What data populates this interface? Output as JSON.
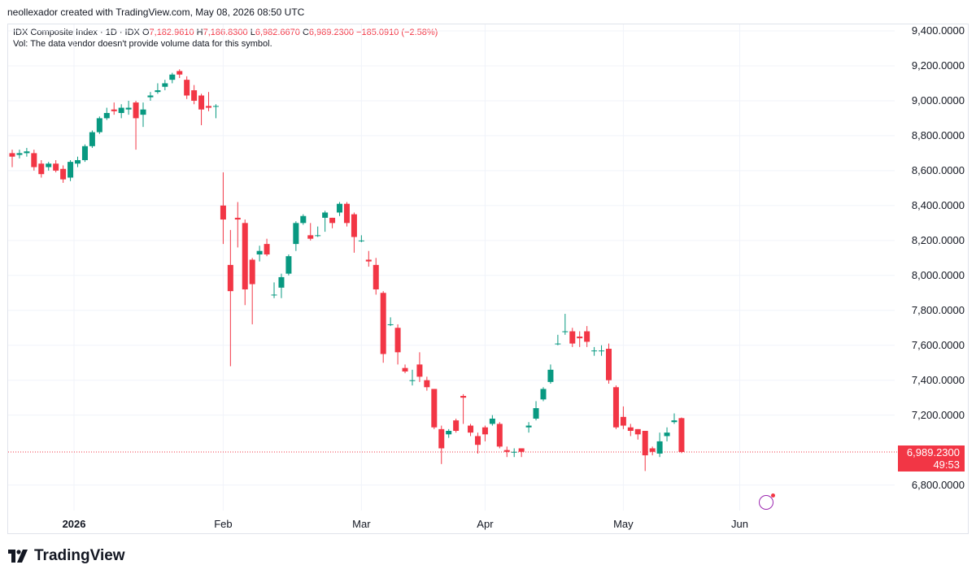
{
  "attribution": "neollexador created with TradingView.com, May 08, 2026 08:50 UTC",
  "legend": {
    "symbol": "IDX Composite Index · 1D · IDX",
    "open_label": "O",
    "open": "7,182.9610",
    "high_label": "H",
    "high": "7,186.8300",
    "low_label": "L",
    "low": "6,982.6670",
    "close_label": "C",
    "close": "6,989.2300",
    "change": "−185.0910 (−2.58%)",
    "volume_note": "Vol: The data vendor doesn't provide volume data for this symbol."
  },
  "last_price": {
    "value": "6,989.2300",
    "countdown": "49:53"
  },
  "brand": "TradingView",
  "colors": {
    "up": "#089981",
    "down": "#f23645",
    "grid": "#f0f3fa",
    "axis_text": "#131722",
    "last_line": "#f23645"
  },
  "chart_data": {
    "type": "candlestick",
    "y_ticks": [
      "9,400.0000",
      "9,200.0000",
      "9,000.0000",
      "8,800.0000",
      "8,600.0000",
      "8,400.0000",
      "8,200.0000",
      "8,000.0000",
      "7,800.0000",
      "7,600.0000",
      "7,400.0000",
      "7,200.0000",
      "6,800.0000"
    ],
    "y_tick_values": [
      9400,
      9200,
      9000,
      8800,
      8600,
      8400,
      8200,
      8000,
      7800,
      7600,
      7400,
      7200,
      6800
    ],
    "x_ticks": [
      {
        "label": "2026",
        "index": 8.5,
        "bold": true
      },
      {
        "label": "Feb",
        "index": 29
      },
      {
        "label": "Mar",
        "index": 48
      },
      {
        "label": "Apr",
        "index": 65
      },
      {
        "label": "May",
        "index": 84
      },
      {
        "label": "Jun",
        "index": 100
      }
    ],
    "ylim": [
      6700,
      9450
    ],
    "last_close": 6989.23,
    "candles": [
      [
        8700,
        8680,
        8720,
        8620
      ],
      [
        8690,
        8700,
        8720,
        8670
      ],
      [
        8700,
        8710,
        8730,
        8680
      ],
      [
        8700,
        8620,
        8720,
        8600
      ],
      [
        8640,
        8580,
        8660,
        8560
      ],
      [
        8620,
        8640,
        8650,
        8600
      ],
      [
        8640,
        8600,
        8660,
        8590
      ],
      [
        8610,
        8550,
        8630,
        8530
      ],
      [
        8560,
        8650,
        8660,
        8540
      ],
      [
        8640,
        8660,
        8680,
        8620
      ],
      [
        8660,
        8740,
        8750,
        8650
      ],
      [
        8740,
        8820,
        8830,
        8730
      ],
      [
        8820,
        8900,
        8910,
        8810
      ],
      [
        8900,
        8930,
        8960,
        8890
      ],
      [
        8950,
        8940,
        8990,
        8920
      ],
      [
        8930,
        8960,
        8980,
        8900
      ],
      [
        8950,
        8960,
        9000,
        8920
      ],
      [
        8990,
        8900,
        9000,
        8720
      ],
      [
        8920,
        8950,
        8990,
        8850
      ],
      [
        9020,
        9030,
        9050,
        9000
      ],
      [
        9050,
        9060,
        9100,
        9040
      ],
      [
        9080,
        9100,
        9120,
        9060
      ],
      [
        9120,
        9150,
        9160,
        9100
      ],
      [
        9170,
        9150,
        9180,
        9130
      ],
      [
        9120,
        9030,
        9140,
        9010
      ],
      [
        9060,
        9000,
        9090,
        8980
      ],
      [
        9030,
        8950,
        9040,
        8860
      ],
      [
        8970,
        8960,
        9050,
        8940
      ],
      [
        8970,
        8970,
        8980,
        8900
      ],
      [
        8400,
        8320,
        8590,
        8180
      ],
      [
        8060,
        7910,
        8260,
        7480
      ],
      [
        8330,
        8320,
        8420,
        8160
      ],
      [
        8300,
        7920,
        8320,
        7830
      ],
      [
        8090,
        7950,
        8100,
        7720
      ],
      [
        8120,
        8140,
        8170,
        8080
      ],
      [
        8180,
        8120,
        8210,
        8110
      ],
      [
        7890,
        7890,
        7960,
        7870
      ],
      [
        7930,
        7990,
        8010,
        7870
      ],
      [
        8010,
        8110,
        8120,
        8000
      ],
      [
        8180,
        8300,
        8310,
        8140
      ],
      [
        8300,
        8340,
        8350,
        8290
      ],
      [
        8230,
        8210,
        8300,
        8200
      ],
      [
        8230,
        8230,
        8280,
        8220
      ],
      [
        8330,
        8360,
        8370,
        8250
      ],
      [
        8330,
        8300,
        8330,
        8270
      ],
      [
        8360,
        8410,
        8420,
        8340
      ],
      [
        8410,
        8300,
        8420,
        8280
      ],
      [
        8350,
        8220,
        8360,
        8130
      ],
      [
        8200,
        8200,
        8230,
        8190
      ],
      [
        8090,
        8080,
        8140,
        8050
      ],
      [
        8060,
        7920,
        8100,
        7890
      ],
      [
        7900,
        7550,
        7910,
        7500
      ],
      [
        7720,
        7720,
        7760,
        7710
      ],
      [
        7700,
        7560,
        7720,
        7490
      ],
      [
        7470,
        7450,
        7490,
        7440
      ],
      [
        7400,
        7400,
        7460,
        7370
      ],
      [
        7490,
        7420,
        7560,
        7390
      ],
      [
        7400,
        7360,
        7420,
        7340
      ],
      [
        7350,
        7130,
        7350,
        7120
      ],
      [
        7120,
        7010,
        7140,
        6920
      ],
      [
        7090,
        7110,
        7120,
        7070
      ],
      [
        7170,
        7110,
        7180,
        7100
      ],
      [
        7310,
        7300,
        7320,
        7150
      ],
      [
        7140,
        7100,
        7150,
        7080
      ],
      [
        7080,
        7030,
        7100,
        6980
      ],
      [
        7130,
        7090,
        7140,
        7050
      ],
      [
        7150,
        7180,
        7200,
        7140
      ],
      [
        7150,
        7020,
        7160,
        7010
      ],
      [
        7000,
        6990,
        7020,
        6960
      ],
      [
        6990,
        6990,
        7010,
        6960
      ],
      [
        7010,
        6990,
        7010,
        6960
      ],
      [
        7130,
        7140,
        7160,
        7100
      ],
      [
        7180,
        7240,
        7280,
        7170
      ],
      [
        7290,
        7350,
        7360,
        7280
      ],
      [
        7390,
        7460,
        7490,
        7380
      ],
      [
        7610,
        7610,
        7660,
        7600
      ],
      [
        7680,
        7680,
        7780,
        7660
      ],
      [
        7680,
        7610,
        7700,
        7590
      ],
      [
        7650,
        7640,
        7680,
        7590
      ],
      [
        7680,
        7620,
        7710,
        7590
      ],
      [
        7570,
        7570,
        7590,
        7540
      ],
      [
        7570,
        7570,
        7600,
        7540
      ],
      [
        7580,
        7400,
        7610,
        7380
      ],
      [
        7360,
        7130,
        7370,
        7120
      ],
      [
        7190,
        7140,
        7250,
        7120
      ],
      [
        7130,
        7110,
        7150,
        7080
      ],
      [
        7120,
        7090,
        7120,
        7060
      ],
      [
        7110,
        6970,
        7110,
        6880
      ],
      [
        7010,
        6990,
        7020,
        6970
      ],
      [
        6980,
        7050,
        7100,
        6960
      ],
      [
        7080,
        7100,
        7130,
        7050
      ],
      [
        7160,
        7170,
        7210,
        7150
      ],
      [
        7182.961,
        6989.23,
        7186.83,
        6982.667
      ]
    ]
  }
}
